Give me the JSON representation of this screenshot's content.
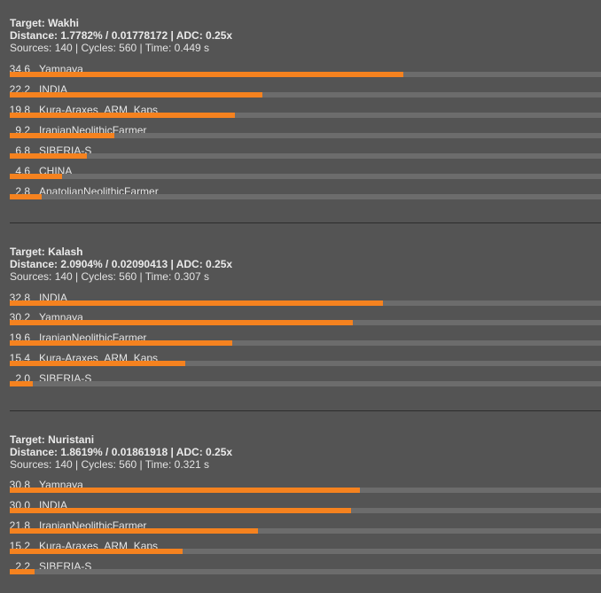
{
  "accent_color": "#f5821f",
  "track_color": "#6c6c6c",
  "background_color": "#545454",
  "panels": [
    {
      "target": "Target: Wakhi",
      "distance": "Distance: 1.7782% / 0.01778172 | ADC: 0.25x",
      "sources": "Sources: 140 | Cycles: 560 | Time: 0.449 s",
      "populations": [
        {
          "value": "34.6",
          "name": "Yamnaya",
          "percent": 34.6
        },
        {
          "value": "22.2",
          "name": "INDIA",
          "percent": 22.2
        },
        {
          "value": "19.8",
          "name": "Kura-Araxes_ARM_Kaps",
          "percent": 19.8
        },
        {
          "value": "9.2",
          "name": "IranianNeolithicFarmer",
          "percent": 9.2
        },
        {
          "value": "6.8",
          "name": "SIBERIA-S",
          "percent": 6.8
        },
        {
          "value": "4.6",
          "name": "CHINA",
          "percent": 4.6
        },
        {
          "value": "2.8",
          "name": "AnatolianNeolithicFarmer",
          "percent": 2.8
        }
      ]
    },
    {
      "target": "Target: Kalash",
      "distance": "Distance: 2.0904% / 0.02090413 | ADC: 0.25x",
      "sources": "Sources: 140 | Cycles: 560 | Time: 0.307 s",
      "populations": [
        {
          "value": "32.8",
          "name": "INDIA",
          "percent": 32.8
        },
        {
          "value": "30.2",
          "name": "Yamnaya",
          "percent": 30.2
        },
        {
          "value": "19.6",
          "name": "IranianNeolithicFarmer",
          "percent": 19.6
        },
        {
          "value": "15.4",
          "name": "Kura-Araxes_ARM_Kaps",
          "percent": 15.4
        },
        {
          "value": "2.0",
          "name": "SIBERIA-S",
          "percent": 2.0
        }
      ]
    },
    {
      "target": "Target: Nuristani",
      "distance": "Distance: 1.8619% / 0.01861918 | ADC: 0.25x",
      "sources": "Sources: 140 | Cycles: 560 | Time: 0.321 s",
      "populations": [
        {
          "value": "30.8",
          "name": "Yamnaya",
          "percent": 30.8
        },
        {
          "value": "30.0",
          "name": "INDIA",
          "percent": 30.0
        },
        {
          "value": "21.8",
          "name": "IranianNeolithicFarmer",
          "percent": 21.8
        },
        {
          "value": "15.2",
          "name": "Kura-Araxes_ARM_Kaps",
          "percent": 15.2
        },
        {
          "value": "2.2",
          "name": "SIBERIA-S",
          "percent": 2.2
        }
      ]
    }
  ]
}
